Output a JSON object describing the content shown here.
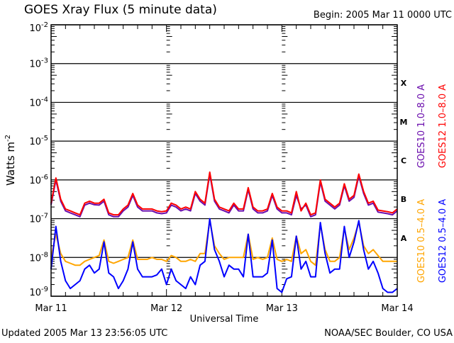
{
  "chart_data": {
    "type": "line",
    "title": "GOES Xray Flux (5 minute data)",
    "begin_label": "Begin:  2005 Mar 11 0000 UTC",
    "xlabel": "Universal Time",
    "ylabel": "Watts m",
    "ylabel_sup": "-2",
    "y_scale": "log10",
    "ylim_log10": [
      -9,
      -2
    ],
    "y_ticks": [
      {
        "base": "10",
        "exp": "-2",
        "log": -2
      },
      {
        "base": "10",
        "exp": "-3",
        "log": -3
      },
      {
        "base": "10",
        "exp": "-4",
        "log": -4
      },
      {
        "base": "10",
        "exp": "-5",
        "log": -5
      },
      {
        "base": "10",
        "exp": "-6",
        "log": -6
      },
      {
        "base": "10",
        "exp": "-7",
        "log": -7
      },
      {
        "base": "10",
        "exp": "-8",
        "log": -8
      },
      {
        "base": "10",
        "exp": "-9",
        "log": -9
      }
    ],
    "x_unit": "hours since 2005 Mar 11 0000 UTC",
    "xlim": [
      0,
      72
    ],
    "x_ticks": [
      {
        "label": "Mar 11",
        "hour": 0
      },
      {
        "label": "Mar 12",
        "hour": 24
      },
      {
        "label": "Mar 13",
        "hour": 48
      },
      {
        "label": "Mar 14",
        "hour": 72
      }
    ],
    "flare_classes": [
      {
        "label": "X",
        "log": -3.5
      },
      {
        "label": "M",
        "log": -4.5
      },
      {
        "label": "C",
        "log": -5.5
      },
      {
        "label": "B",
        "log": -6.5
      },
      {
        "label": "A",
        "log": -7.5
      }
    ],
    "series": [
      {
        "name": "GOES10 1.0-8.0 A",
        "legend": "GOES10 1.0–8.0 A",
        "color": "#6a0dad",
        "log10_values": [
          -6.64,
          -6.0,
          -6.55,
          -6.8,
          -6.85,
          -6.9,
          -6.95,
          -6.65,
          -6.6,
          -6.64,
          -6.65,
          -6.55,
          -6.9,
          -6.95,
          -6.95,
          -6.8,
          -6.7,
          -6.4,
          -6.7,
          -6.8,
          -6.8,
          -6.8,
          -6.85,
          -6.87,
          -6.85,
          -6.65,
          -6.7,
          -6.8,
          -6.75,
          -6.8,
          -6.35,
          -6.55,
          -6.65,
          -5.85,
          -6.55,
          -6.75,
          -6.8,
          -6.85,
          -6.65,
          -6.8,
          -6.8,
          -6.25,
          -6.75,
          -6.85,
          -6.85,
          -6.8,
          -6.4,
          -6.75,
          -6.85,
          -6.85,
          -6.9,
          -6.4,
          -6.75,
          -6.65,
          -6.95,
          -6.9,
          -6.05,
          -6.55,
          -6.65,
          -6.75,
          -6.65,
          -6.15,
          -6.55,
          -6.45,
          -5.9,
          -6.35,
          -6.65,
          -6.6,
          -6.83,
          -6.85,
          -6.87,
          -6.9,
          -6.8
        ]
      },
      {
        "name": "GOES12 1.0-8.0 A",
        "legend": "GOES12 1.0–8.0 A",
        "color": "#ff0000",
        "log10_values": [
          -6.6,
          -5.95,
          -6.5,
          -6.75,
          -6.8,
          -6.85,
          -6.9,
          -6.6,
          -6.55,
          -6.6,
          -6.6,
          -6.5,
          -6.85,
          -6.9,
          -6.9,
          -6.75,
          -6.65,
          -6.35,
          -6.65,
          -6.75,
          -6.75,
          -6.75,
          -6.8,
          -6.82,
          -6.8,
          -6.6,
          -6.65,
          -6.75,
          -6.7,
          -6.75,
          -6.3,
          -6.5,
          -6.6,
          -5.8,
          -6.5,
          -6.7,
          -6.75,
          -6.8,
          -6.6,
          -6.75,
          -6.75,
          -6.2,
          -6.7,
          -6.8,
          -6.8,
          -6.75,
          -6.35,
          -6.7,
          -6.8,
          -6.8,
          -6.85,
          -6.3,
          -6.8,
          -6.6,
          -6.9,
          -6.85,
          -6.0,
          -6.5,
          -6.6,
          -6.7,
          -6.6,
          -6.1,
          -6.5,
          -6.4,
          -5.85,
          -6.3,
          -6.6,
          -6.55,
          -6.78,
          -6.8,
          -6.82,
          -6.85,
          -6.75
        ]
      },
      {
        "name": "GOES10 0.5-4.0 A",
        "legend": "GOES10 0.5–4.0 A",
        "color": "#ffa500",
        "log10_values": [
          -8.0,
          -7.4,
          -7.9,
          -8.1,
          -8.15,
          -8.2,
          -8.2,
          -8.1,
          -8.05,
          -8.0,
          -7.95,
          -7.55,
          -8.1,
          -8.15,
          -8.1,
          -8.05,
          -8.0,
          -7.55,
          -8.05,
          -8.05,
          -8.05,
          -8.0,
          -8.05,
          -8.05,
          -8.1,
          -7.95,
          -8.0,
          -8.1,
          -8.1,
          -8.05,
          -8.1,
          -7.9,
          -7.9,
          -7.05,
          -7.7,
          -7.9,
          -8.05,
          -8.0,
          -8.0,
          -8.0,
          -8.0,
          -7.4,
          -8.05,
          -8.0,
          -8.05,
          -8.0,
          -7.5,
          -8.05,
          -8.1,
          -8.05,
          -8.1,
          -7.45,
          -7.9,
          -7.8,
          -8.1,
          -8.2,
          -7.15,
          -7.8,
          -8.1,
          -8.1,
          -8.0,
          -7.25,
          -7.8,
          -7.5,
          -7.1,
          -7.7,
          -7.9,
          -7.8,
          -7.95,
          -8.1,
          -8.1,
          -8.1,
          -8.1
        ]
      },
      {
        "name": "GOES12 0.5-4.0 A",
        "legend": "GOES12 0.5–4.0 A",
        "color": "#0000ff",
        "log10_values": [
          -8.3,
          -7.2,
          -8.1,
          -8.6,
          -8.8,
          -8.7,
          -8.6,
          -8.3,
          -8.2,
          -8.4,
          -8.3,
          -7.6,
          -8.4,
          -8.5,
          -8.8,
          -8.6,
          -8.3,
          -7.6,
          -8.3,
          -8.5,
          -8.5,
          -8.5,
          -8.45,
          -8.3,
          -8.7,
          -8.3,
          -8.6,
          -8.7,
          -8.8,
          -8.5,
          -8.7,
          -8.2,
          -8.1,
          -7.0,
          -7.8,
          -8.1,
          -8.5,
          -8.2,
          -8.3,
          -8.3,
          -8.5,
          -7.4,
          -8.5,
          -8.5,
          -8.5,
          -8.4,
          -7.55,
          -8.8,
          -8.9,
          -8.55,
          -8.5,
          -7.45,
          -8.3,
          -8.1,
          -8.5,
          -8.5,
          -7.1,
          -7.9,
          -8.4,
          -8.3,
          -8.3,
          -7.2,
          -8.0,
          -7.6,
          -7.05,
          -7.8,
          -8.3,
          -8.1,
          -8.4,
          -8.8,
          -8.9,
          -8.9,
          -8.8
        ]
      }
    ],
    "grid": "horizontal lines at each decade"
  },
  "footer": {
    "updated": "Updated 2005 Mar 13 23:56:05 UTC",
    "credit": "NOAA/SEC Boulder, CO USA"
  }
}
